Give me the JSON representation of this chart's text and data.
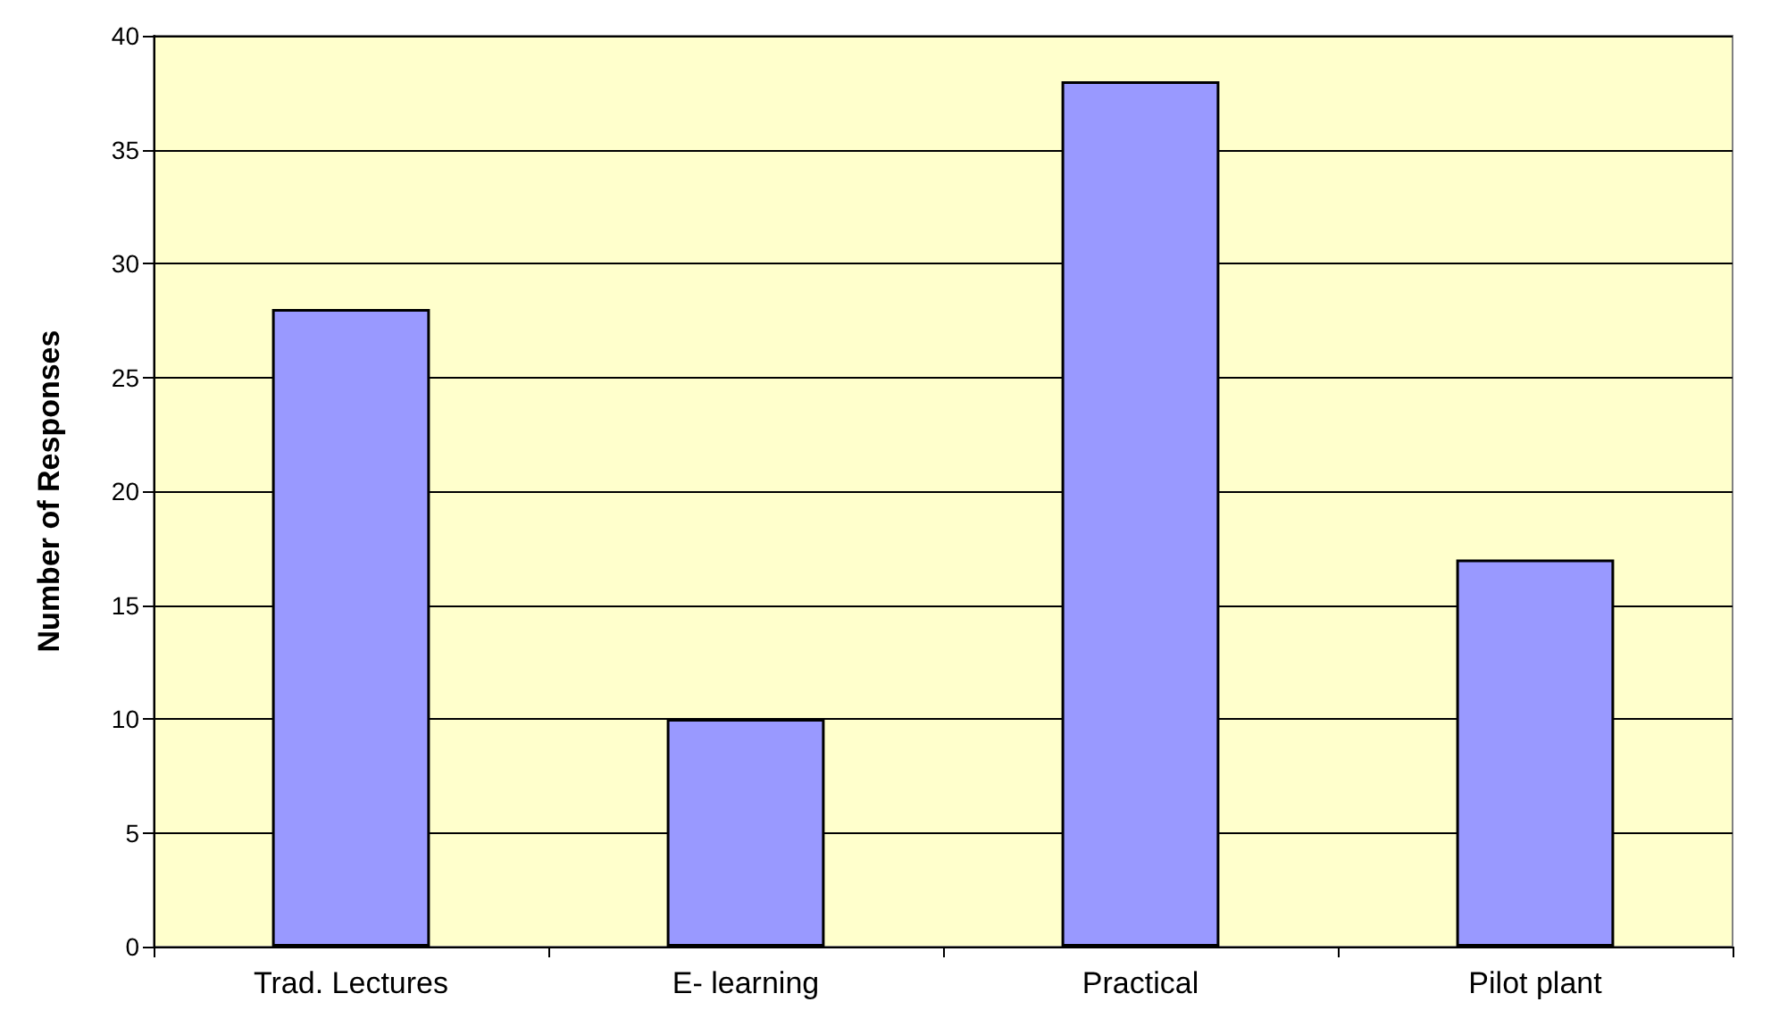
{
  "chart_data": {
    "type": "bar",
    "ylabel": "Number of Responses",
    "categories": [
      "Trad. Lectures",
      "E- learning",
      "Practical",
      "Pilot plant"
    ],
    "values": [
      28,
      10,
      38,
      17
    ],
    "color": "#9999ff",
    "ylim": [
      0,
      40
    ],
    "yticks": [
      0,
      5,
      10,
      15,
      20,
      25,
      30,
      35,
      40
    ],
    "grid": "y"
  }
}
